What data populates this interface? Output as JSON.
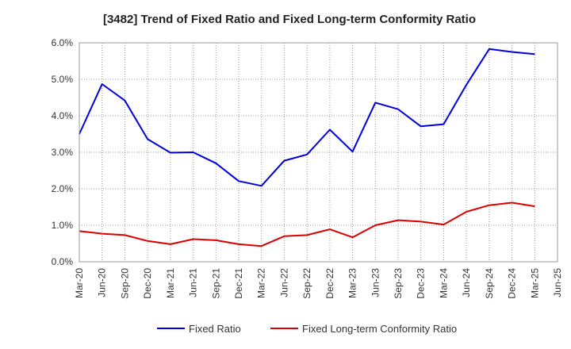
{
  "chart_data": {
    "type": "line",
    "title": "[3482]  Trend of Fixed Ratio and Fixed Long-term Conformity Ratio",
    "xlabel": "",
    "ylabel": "",
    "categories": [
      "Mar-20",
      "Jun-20",
      "Sep-20",
      "Dec-20",
      "Mar-21",
      "Jun-21",
      "Sep-21",
      "Dec-21",
      "Mar-22",
      "Jun-22",
      "Sep-22",
      "Dec-22",
      "Mar-23",
      "Jun-23",
      "Sep-23",
      "Dec-23",
      "Mar-24",
      "Jun-24",
      "Sep-24",
      "Dec-24",
      "Mar-25",
      "Jun-25"
    ],
    "y_ticks": [
      "0.0%",
      "1.0%",
      "2.0%",
      "3.0%",
      "4.0%",
      "5.0%",
      "6.0%"
    ],
    "ylim": [
      0,
      6
    ],
    "grid": true,
    "legend_position": "bottom",
    "series": [
      {
        "name": "Fixed Ratio",
        "color": "#0000dd",
        "values": [
          3.5,
          4.87,
          4.42,
          3.36,
          2.99,
          3.0,
          2.7,
          2.21,
          2.08,
          2.77,
          2.94,
          3.62,
          3.02,
          4.36,
          4.18,
          3.71,
          3.77,
          4.85,
          5.83,
          5.75,
          5.69,
          null
        ]
      },
      {
        "name": "Fixed Long-term Conformity Ratio",
        "color": "#dd0000",
        "values": [
          0.84,
          0.77,
          0.73,
          0.57,
          0.48,
          0.62,
          0.59,
          0.48,
          0.43,
          0.7,
          0.73,
          0.89,
          0.67,
          1.0,
          1.14,
          1.1,
          1.02,
          1.37,
          1.55,
          1.62,
          1.52,
          null
        ]
      }
    ]
  }
}
